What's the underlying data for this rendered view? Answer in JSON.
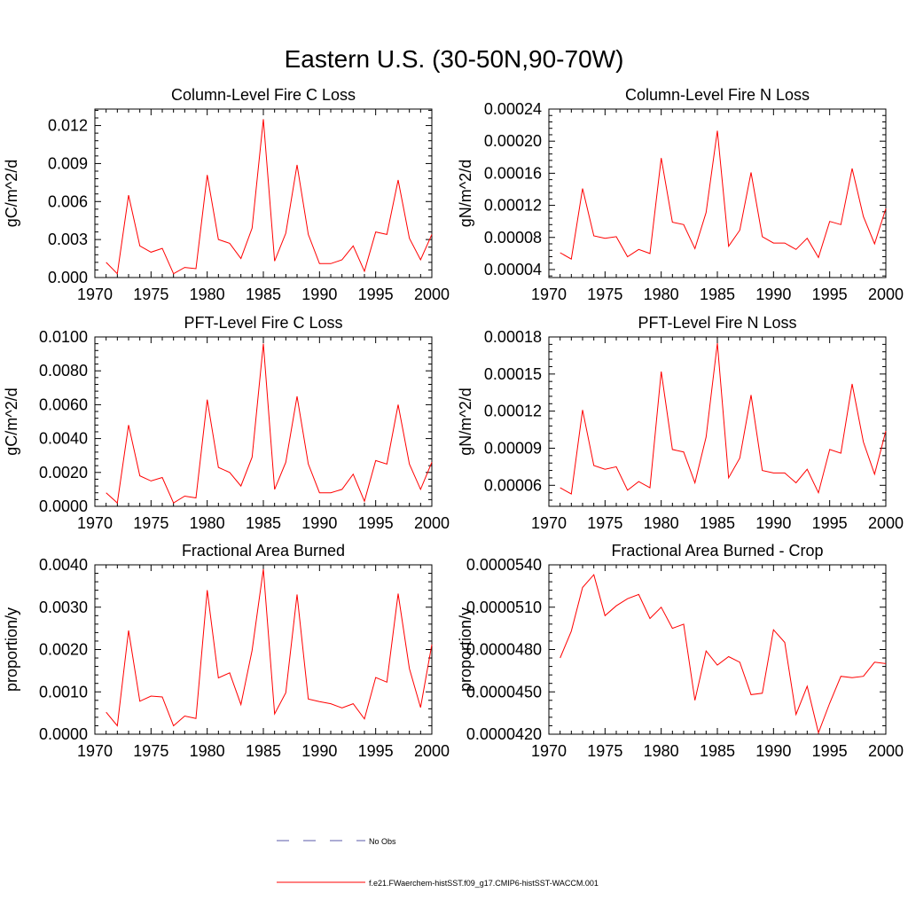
{
  "figure_title": "Eastern U.S. (30-50N,90-70W)",
  "legend": {
    "obs_label": "No Obs",
    "model_label": "f.e21.FWaerchem-histSST.f09_g17.CMIP6-histSST-WACCM.001",
    "obs_color": "#5a5aa8",
    "model_color": "#ff0000"
  },
  "chart_data": [
    {
      "type": "line",
      "title": "Column-Level Fire C Loss",
      "ylabel": "gC/m^2/d",
      "xlim": [
        1970,
        2000
      ],
      "ylim": [
        0,
        0.0133
      ],
      "xticks": [
        1970,
        1975,
        1980,
        1985,
        1990,
        1995,
        2000
      ],
      "xtick_labels": [
        "1970",
        "1975",
        "1980",
        "1985",
        "1990",
        "1995",
        "2000"
      ],
      "yticks": [
        0,
        0.003,
        0.006,
        0.009,
        0.012
      ],
      "ytick_labels": [
        "0.000",
        "0.003",
        "0.006",
        "0.009",
        "0.012"
      ],
      "x": [
        1971,
        1972,
        1973,
        1974,
        1975,
        1976,
        1977,
        1978,
        1979,
        1980,
        1981,
        1982,
        1983,
        1984,
        1985,
        1986,
        1987,
        1988,
        1989,
        1990,
        1991,
        1992,
        1993,
        1994,
        1995,
        1996,
        1997,
        1998,
        1999,
        2000
      ],
      "series": [
        {
          "color": "#ff0000",
          "values": [
            0.0012,
            0.0003,
            0.0065,
            0.0025,
            0.002,
            0.0023,
            0.0003,
            0.0008,
            0.0007,
            0.0081,
            0.003,
            0.0027,
            0.0015,
            0.0039,
            0.0125,
            0.0013,
            0.0035,
            0.0089,
            0.0034,
            0.0011,
            0.0011,
            0.0014,
            0.0025,
            0.0005,
            0.0036,
            0.0034,
            0.0077,
            0.0031,
            0.0014,
            0.0034
          ]
        }
      ]
    },
    {
      "type": "line",
      "title": "Column-Level Fire N Loss",
      "ylabel": "gN/m^2/d",
      "xlim": [
        1970,
        2000
      ],
      "ylim": [
        3e-05,
        0.00024
      ],
      "xticks": [
        1970,
        1975,
        1980,
        1985,
        1990,
        1995,
        2000
      ],
      "xtick_labels": [
        "1970",
        "1975",
        "1980",
        "1985",
        "1990",
        "1995",
        "2000"
      ],
      "yticks": [
        4e-05,
        8e-05,
        0.00012,
        0.00016,
        0.0002,
        0.00024
      ],
      "ytick_labels": [
        "0.00004",
        "0.00008",
        "0.00012",
        "0.00016",
        "0.00020",
        "0.00024"
      ],
      "x": [
        1971,
        1972,
        1973,
        1974,
        1975,
        1976,
        1977,
        1978,
        1979,
        1980,
        1981,
        1982,
        1983,
        1984,
        1985,
        1986,
        1987,
        1988,
        1989,
        1990,
        1991,
        1992,
        1993,
        1994,
        1995,
        1996,
        1997,
        1998,
        1999,
        2000
      ],
      "series": [
        {
          "color": "#ff0000",
          "values": [
            6.1e-05,
            5.3e-05,
            0.000141,
            8.2e-05,
            7.9e-05,
            8.1e-05,
            5.6e-05,
            6.5e-05,
            6e-05,
            0.000179,
            9.9e-05,
            9.6e-05,
            6.6e-05,
            0.000111,
            0.000213,
            6.9e-05,
            8.9e-05,
            0.000161,
            8.1e-05,
            7.3e-05,
            7.3e-05,
            6.5e-05,
            7.9e-05,
            5.5e-05,
            0.0001,
            9.6e-05,
            0.000166,
            0.000106,
            7.2e-05,
            0.000116
          ]
        }
      ]
    },
    {
      "type": "line",
      "title": "PFT-Level Fire C Loss",
      "ylabel": "gC/m^2/d",
      "xlim": [
        1970,
        2000
      ],
      "ylim": [
        0,
        0.01
      ],
      "xticks": [
        1970,
        1975,
        1980,
        1985,
        1990,
        1995,
        2000
      ],
      "xtick_labels": [
        "1970",
        "1975",
        "1980",
        "1985",
        "1990",
        "1995",
        "2000"
      ],
      "yticks": [
        0,
        0.002,
        0.004,
        0.006,
        0.008,
        0.01
      ],
      "ytick_labels": [
        "0.0000",
        "0.0020",
        "0.0040",
        "0.0060",
        "0.0080",
        "0.0100"
      ],
      "x": [
        1971,
        1972,
        1973,
        1974,
        1975,
        1976,
        1977,
        1978,
        1979,
        1980,
        1981,
        1982,
        1983,
        1984,
        1985,
        1986,
        1987,
        1988,
        1989,
        1990,
        1991,
        1992,
        1993,
        1994,
        1995,
        1996,
        1997,
        1998,
        1999,
        2000
      ],
      "series": [
        {
          "color": "#ff0000",
          "values": [
            0.0008,
            0.0002,
            0.0048,
            0.0018,
            0.0015,
            0.0017,
            0.0002,
            0.0006,
            0.0005,
            0.0063,
            0.0023,
            0.002,
            0.0012,
            0.0029,
            0.0096,
            0.001,
            0.0026,
            0.0065,
            0.0025,
            0.0008,
            0.0008,
            0.001,
            0.0019,
            0.0003,
            0.0027,
            0.0025,
            0.006,
            0.0025,
            0.001,
            0.0026
          ]
        }
      ]
    },
    {
      "type": "line",
      "title": "PFT-Level Fire N Loss",
      "ylabel": "gN/m^2/d",
      "xlim": [
        1970,
        2000
      ],
      "ylim": [
        4.3e-05,
        0.00018
      ],
      "xticks": [
        1970,
        1975,
        1980,
        1985,
        1990,
        1995,
        2000
      ],
      "xtick_labels": [
        "1970",
        "1975",
        "1980",
        "1985",
        "1990",
        "1995",
        "2000"
      ],
      "yticks": [
        6e-05,
        9e-05,
        0.00012,
        0.00015,
        0.00018
      ],
      "ytick_labels": [
        "0.00006",
        "0.00009",
        "0.00012",
        "0.00015",
        "0.00018"
      ],
      "x": [
        1971,
        1972,
        1973,
        1974,
        1975,
        1976,
        1977,
        1978,
        1979,
        1980,
        1981,
        1982,
        1983,
        1984,
        1985,
        1986,
        1987,
        1988,
        1989,
        1990,
        1991,
        1992,
        1993,
        1994,
        1995,
        1996,
        1997,
        1998,
        1999,
        2000
      ],
      "series": [
        {
          "color": "#ff0000",
          "values": [
            5.8e-05,
            5.3e-05,
            0.000121,
            7.6e-05,
            7.3e-05,
            7.5e-05,
            5.6e-05,
            6.3e-05,
            5.8e-05,
            0.000152,
            8.9e-05,
            8.7e-05,
            6.2e-05,
            9.9e-05,
            0.000175,
            6.6e-05,
            8.2e-05,
            0.000133,
            7.2e-05,
            7e-05,
            7e-05,
            6.2e-05,
            7.3e-05,
            5.4e-05,
            8.9e-05,
            8.6e-05,
            0.000142,
            9.5e-05,
            6.9e-05,
            0.000104
          ]
        }
      ]
    },
    {
      "type": "line",
      "title": "Fractional Area Burned",
      "ylabel": "proportion/y",
      "xlim": [
        1970,
        2000
      ],
      "ylim": [
        0,
        0.004
      ],
      "xticks": [
        1970,
        1975,
        1980,
        1985,
        1990,
        1995,
        2000
      ],
      "xtick_labels": [
        "1970",
        "1975",
        "1980",
        "1985",
        "1990",
        "1995",
        "2000"
      ],
      "yticks": [
        0,
        0.001,
        0.002,
        0.003,
        0.004
      ],
      "ytick_labels": [
        "0.0000",
        "0.0010",
        "0.0020",
        "0.0030",
        "0.0040"
      ],
      "x": [
        1971,
        1972,
        1973,
        1974,
        1975,
        1976,
        1977,
        1978,
        1979,
        1980,
        1981,
        1982,
        1983,
        1984,
        1985,
        1986,
        1987,
        1988,
        1989,
        1990,
        1991,
        1992,
        1993,
        1994,
        1995,
        1996,
        1997,
        1998,
        1999,
        2000
      ],
      "series": [
        {
          "color": "#ff0000",
          "values": [
            0.00052,
            0.0002,
            0.00245,
            0.00078,
            0.0009,
            0.00088,
            0.0002,
            0.00043,
            0.00037,
            0.0034,
            0.00133,
            0.00145,
            0.0007,
            0.00198,
            0.0039,
            0.00048,
            0.00098,
            0.0033,
            0.00083,
            0.00077,
            0.00072,
            0.00062,
            0.00072,
            0.00036,
            0.00134,
            0.00123,
            0.00332,
            0.00155,
            0.00063,
            0.00212
          ]
        }
      ]
    },
    {
      "type": "line",
      "title": "Fractional Area Burned - Crop",
      "ylabel": "proportion/y",
      "xlim": [
        1970,
        2000
      ],
      "ylim": [
        4.2e-05,
        5.4e-05
      ],
      "xticks": [
        1970,
        1975,
        1980,
        1985,
        1990,
        1995,
        2000
      ],
      "xtick_labels": [
        "1970",
        "1975",
        "1980",
        "1985",
        "1990",
        "1995",
        "2000"
      ],
      "yticks": [
        4.2e-05,
        4.5e-05,
        4.8e-05,
        5.1e-05,
        5.4e-05
      ],
      "ytick_labels": [
        "0.0000420",
        "0.0000450",
        "0.0000480",
        "0.0000510",
        "0.0000540"
      ],
      "x": [
        1971,
        1972,
        1973,
        1974,
        1975,
        1976,
        1977,
        1978,
        1979,
        1980,
        1981,
        1982,
        1983,
        1984,
        1985,
        1986,
        1987,
        1988,
        1989,
        1990,
        1991,
        1992,
        1993,
        1994,
        1995,
        1996,
        1997,
        1998,
        1999,
        2000
      ],
      "series": [
        {
          "color": "#ff0000",
          "values": [
            4.74e-05,
            4.93e-05,
            5.24e-05,
            5.33e-05,
            5.04e-05,
            5.11e-05,
            5.16e-05,
            5.19e-05,
            5.02e-05,
            5.1e-05,
            4.95e-05,
            4.98e-05,
            4.44e-05,
            4.79e-05,
            4.69e-05,
            4.75e-05,
            4.71e-05,
            4.48e-05,
            4.49e-05,
            4.94e-05,
            4.85e-05,
            4.34e-05,
            4.54e-05,
            4.21e-05,
            4.42e-05,
            4.61e-05,
            4.6e-05,
            4.61e-05,
            4.71e-05,
            4.7e-05
          ]
        }
      ]
    }
  ]
}
